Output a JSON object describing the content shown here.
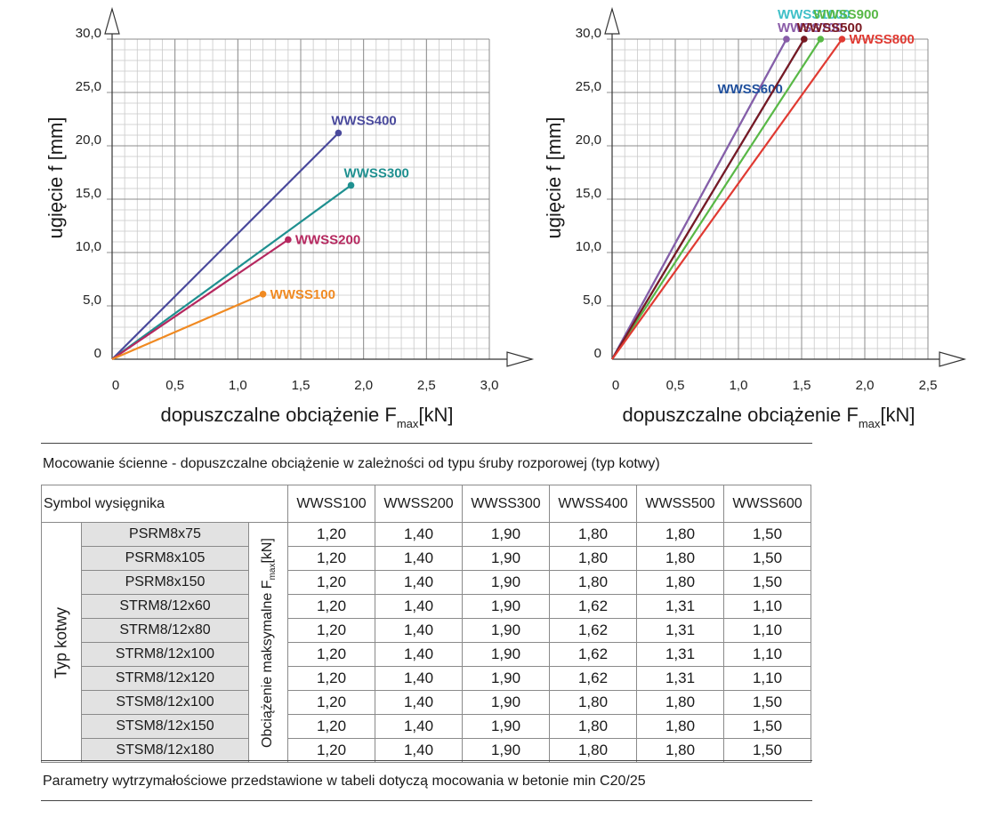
{
  "chart_data": [
    {
      "type": "line",
      "xlabel": "dopuszczalne obciążenie F",
      "xlabel_sub": "max",
      "xlabel_unit": "[kN]",
      "ylabel": "ugięcie f [mm]",
      "xlim": [
        0,
        3.0
      ],
      "ylim": [
        0,
        30.0
      ],
      "x_ticks": [
        "0",
        "0,5",
        "1,0",
        "1,5",
        "2,0",
        "2,5",
        "3,0"
      ],
      "y_ticks": [
        "0",
        "5,0",
        "10,0",
        "15,0",
        "20,0",
        "25,0",
        "30,0"
      ],
      "grid": true,
      "series": [
        {
          "name": "WWSS400",
          "color": "#4a4a9c",
          "x": [
            0,
            1.8
          ],
          "y": [
            0,
            21.2
          ],
          "label_pos": "above-right"
        },
        {
          "name": "WWSS300",
          "color": "#1f9090",
          "x": [
            0,
            1.9
          ],
          "y": [
            0,
            16.3
          ],
          "label_pos": "above-right"
        },
        {
          "name": "WWSS200",
          "color": "#b5285f",
          "x": [
            0,
            1.4
          ],
          "y": [
            0,
            11.2
          ],
          "label_pos": "right"
        },
        {
          "name": "WWSS100",
          "color": "#f08a22",
          "x": [
            0,
            1.2
          ],
          "y": [
            0,
            6.1
          ],
          "label_pos": "right"
        }
      ]
    },
    {
      "type": "line",
      "xlabel": "dopuszczalne obciążenie F",
      "xlabel_sub": "max",
      "xlabel_unit": "[kN]",
      "ylabel": "ugięcie f [mm]",
      "xlim": [
        0,
        2.5
      ],
      "ylim": [
        0,
        30.0
      ],
      "x_ticks": [
        "0",
        "0,5",
        "1,0",
        "1,5",
        "2,0",
        "2,5"
      ],
      "y_ticks": [
        "0",
        "5,0",
        "10,0",
        "15,0",
        "20,0",
        "25,0",
        "30,0"
      ],
      "grid": true,
      "series": [
        {
          "name": "WWSS1000",
          "color": "#3fc0c8",
          "x": [
            0,
            1.38
          ],
          "y": [
            0,
            30.0
          ],
          "label_pos": "top-left"
        },
        {
          "name": "WWSS700",
          "color": "#8a5ca8",
          "x": [
            0,
            1.38
          ],
          "y": [
            0,
            30.0
          ],
          "label_pos": "top-left-lower"
        },
        {
          "name": "WWSS600",
          "color": "#1f4f9c",
          "x": [
            0,
            1.52
          ],
          "y": [
            0,
            30.0
          ],
          "label_pos": "left"
        },
        {
          "name": "WWSS900",
          "color": "#58b846",
          "x": [
            0,
            1.65
          ],
          "y": [
            0,
            30.0
          ],
          "label_pos": "top-right"
        },
        {
          "name": "WWSS500",
          "color": "#7a1a22",
          "x": [
            0,
            1.52
          ],
          "y": [
            0,
            30.0
          ],
          "label_pos": "top-right-lower"
        },
        {
          "name": "WWSS800",
          "color": "#e03a32",
          "x": [
            0,
            1.82
          ],
          "y": [
            0,
            30.0
          ],
          "label_pos": "right"
        }
      ]
    }
  ],
  "table": {
    "title": "Mocowanie ścienne - dopuszczalne obciążenie w zależności od typu śruby rozporowej (typ kotwy)",
    "symbol_label": "Symbol wysięgnika",
    "columns": [
      "WWSS100",
      "WWSS200",
      "WWSS300",
      "WWSS400",
      "WWSS500",
      "WWSS600"
    ],
    "row_group_label": "Typ kotwy",
    "value_label": "Obciążenie maksymalne F",
    "value_label_sub": "max",
    "value_label_unit": "[kN]",
    "rows": [
      {
        "anchor": "PSRM8x75",
        "values": [
          "1,20",
          "1,40",
          "1,90",
          "1,80",
          "1,80",
          "1,50"
        ]
      },
      {
        "anchor": "PSRM8x105",
        "values": [
          "1,20",
          "1,40",
          "1,90",
          "1,80",
          "1,80",
          "1,50"
        ]
      },
      {
        "anchor": "PSRM8x150",
        "values": [
          "1,20",
          "1,40",
          "1,90",
          "1,80",
          "1,80",
          "1,50"
        ]
      },
      {
        "anchor": "STRM8/12x60",
        "values": [
          "1,20",
          "1,40",
          "1,90",
          "1,62",
          "1,31",
          "1,10"
        ]
      },
      {
        "anchor": "STRM8/12x80",
        "values": [
          "1,20",
          "1,40",
          "1,90",
          "1,62",
          "1,31",
          "1,10"
        ]
      },
      {
        "anchor": "STRM8/12x100",
        "values": [
          "1,20",
          "1,40",
          "1,90",
          "1,62",
          "1,31",
          "1,10"
        ]
      },
      {
        "anchor": "STRM8/12x120",
        "values": [
          "1,20",
          "1,40",
          "1,90",
          "1,62",
          "1,31",
          "1,10"
        ]
      },
      {
        "anchor": "STSM8/12x100",
        "values": [
          "1,20",
          "1,40",
          "1,90",
          "1,80",
          "1,80",
          "1,50"
        ]
      },
      {
        "anchor": "STSM8/12x150",
        "values": [
          "1,20",
          "1,40",
          "1,90",
          "1,80",
          "1,80",
          "1,50"
        ]
      },
      {
        "anchor": "STSM8/12x180",
        "values": [
          "1,20",
          "1,40",
          "1,90",
          "1,80",
          "1,80",
          "1,50"
        ]
      }
    ],
    "footnote": "Parametry wytrzymałościowe przedstawione w tabeli dotyczą mocowania w betonie min C20/25"
  }
}
